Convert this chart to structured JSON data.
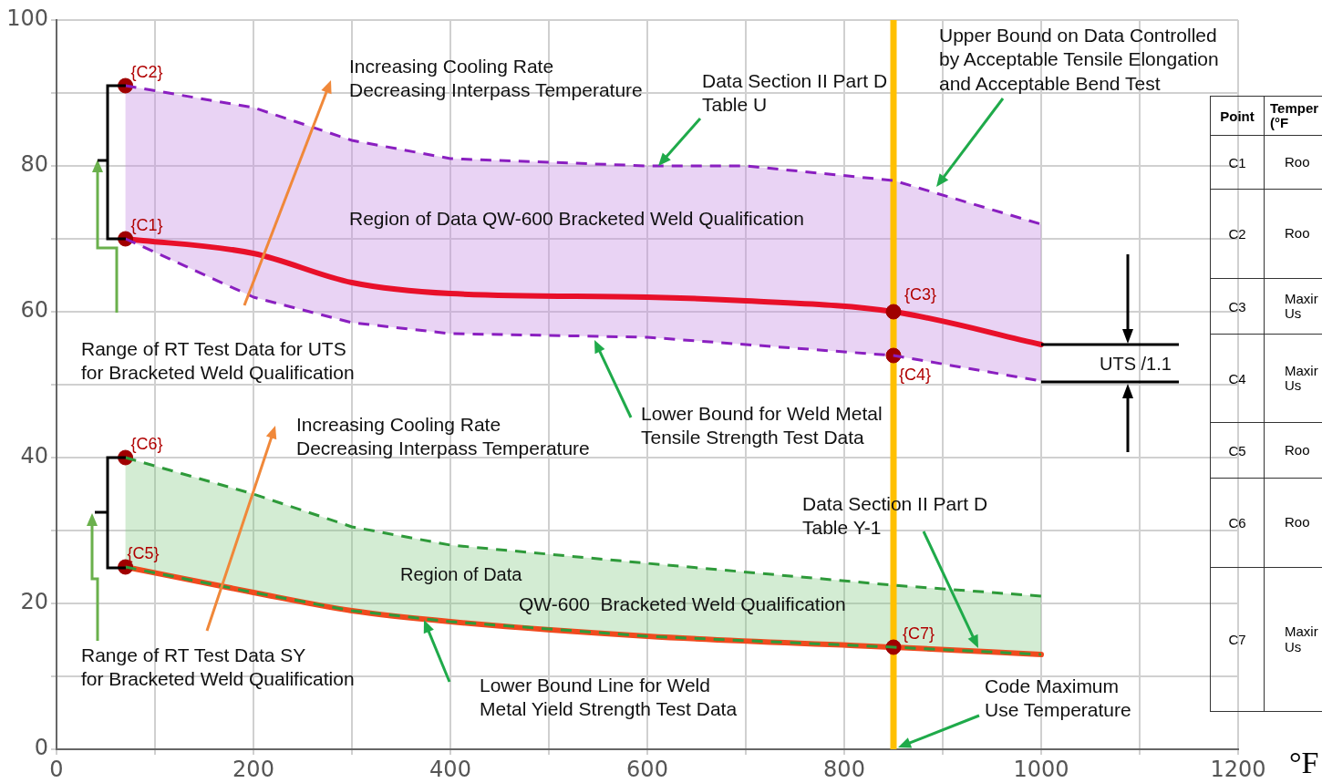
{
  "chart_data": {
    "type": "line",
    "xlabel": "°F",
    "xlim": [
      0,
      1200
    ],
    "xticks": [
      0,
      {
        "value": 100,
        "label": null
      },
      200,
      {
        "value": 300,
        "label": null
      },
      400,
      {
        "value": 500,
        "label": null
      },
      600,
      {
        "value": 700,
        "label": null
      },
      800,
      {
        "value": 900,
        "label": null
      },
      1000,
      {
        "value": 1100,
        "label": null
      },
      1200
    ],
    "ylim": [
      0,
      100
    ],
    "yticks": [
      0,
      {
        "value": 10,
        "label": null
      },
      20,
      {
        "value": 30,
        "label": null
      },
      40,
      {
        "value": 50,
        "label": null
      },
      60,
      {
        "value": 70,
        "label": null
      },
      80,
      {
        "value": 90,
        "label": null
      },
      100
    ],
    "grid": true,
    "legend": false,
    "series": [
      {
        "color": "#e8102a",
        "marker": "none",
        "line_style": "solid",
        "x": [
          70,
          200,
          300,
          400,
          600,
          700,
          850,
          1000
        ],
        "values": [
          70,
          68,
          64,
          62.5,
          62,
          61.5,
          60,
          55.5
        ],
        "lower": [
          70,
          62,
          58.5,
          57,
          56.5,
          55.5,
          54,
          50.5
        ],
        "upper": [
          91,
          88,
          83.5,
          81,
          80,
          80,
          78,
          72
        ]
      },
      {
        "color": "#f04a1e",
        "marker": "none",
        "line_style": "solid",
        "x": [
          70,
          200,
          300,
          400,
          600,
          850,
          1000
        ],
        "values": [
          25,
          21.5,
          19,
          17.5,
          15.5,
          14,
          13
        ],
        "lower": [
          25,
          21.5,
          19,
          17.5,
          15.5,
          14,
          13
        ],
        "upper": [
          40,
          35,
          30.5,
          28,
          25.5,
          22.5,
          21
        ]
      },
      {
        "type": "scatter",
        "color": "#a00000",
        "marker": "circle",
        "x": [
          70,
          70,
          850,
          850,
          70,
          70,
          850
        ],
        "values": [
          70,
          91,
          60,
          54,
          25,
          40,
          14
        ],
        "value_labels": [
          "{C1}",
          "{C2}",
          "{C3}",
          "{C4}",
          "{C5}",
          "{C6}",
          "{C7}"
        ]
      }
    ],
    "ref_lines": [
      {
        "axis": "x",
        "value": 850,
        "color": "#ffc000"
      }
    ],
    "annotations": [
      "Increasing Cooling Rate\nDecreasing Interpass Temperature",
      "Data Section II Part D\nTable U",
      "Upper Bound on Data Controlled\nby Acceptable Tensile Elongation\nand Acceptable Bend Test",
      "Region of Data QW-600 Bracketed Weld Qualification",
      "Range of RT Test Data for UTS\nfor Bracketed Weld Qualification",
      "Lower Bound for Weld Metal\nTensile Strength Test Data",
      {
        "text": "UTS /1.1",
        "x": 1000,
        "y": 55.5
      },
      "Increasing Cooling Rate\nDecreasing Interpass Temperature",
      "Data Section II Part D\nTable Y-1",
      "Region of Data",
      "QW-600  Bracketed Weld Qualification",
      "Range of RT Test Data SY\nfor Bracketed Weld Qualification",
      "Lower Bound Line for Weld\nMetal Yield Strength Test Data",
      "Code Maximum\nUse Temperature",
      "Point",
      "Temper\n(°F",
      "C1",
      "Roo",
      "C2",
      "Roo",
      "C3",
      "Maxir\nUs",
      "C4",
      "Maxir\nUs",
      "C5",
      "Roo",
      "C6",
      "Roo",
      "C7",
      "Maxir\nUs"
    ]
  }
}
